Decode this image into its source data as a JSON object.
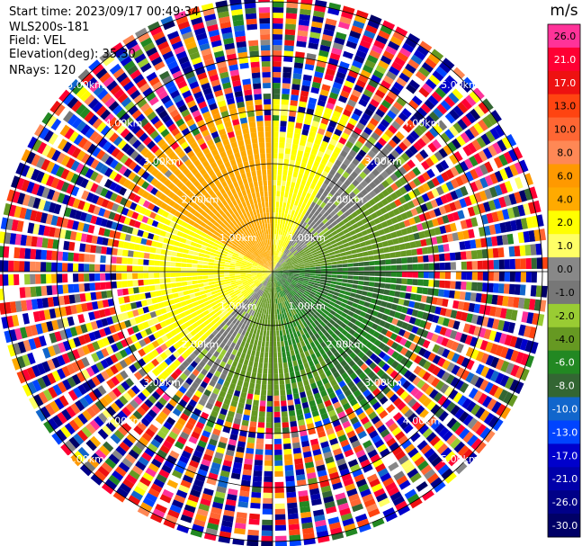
{
  "header": {
    "start_time": "Start time: 2023/09/17 00:49:34",
    "instrument": "WLS200s-181",
    "field": "Field: VEL",
    "elevation": "Elevation(deg): 35.30",
    "nrays": "NRays: 120"
  },
  "chart_data": {
    "type": "heatmap",
    "projection": "polar PPI",
    "field": "VEL",
    "units": "m/s",
    "nrays": 120,
    "range_rings_km": [
      1.0,
      2.0,
      3.0,
      4.0,
      5.0
    ],
    "range_ring_labels": [
      "1.00km",
      "2.00km",
      "3.00km",
      "4.00km",
      "5.00km"
    ],
    "max_range_km": 5.1,
    "colorbar": {
      "unit_label": "m/s",
      "ticks": [
        "26.0",
        "21.0",
        "17.0",
        "13.0",
        "10.0",
        "8.0",
        "6.0",
        "4.0",
        "2.0",
        "1.0",
        "0.0",
        "-1.0",
        "-2.0",
        "-4.0",
        "-6.0",
        "-8.0",
        "-10.0",
        "-13.0",
        "-17.0",
        "-21.0",
        "-26.0",
        "-30.0"
      ],
      "colors": [
        "#ff3399",
        "#ff0033",
        "#ee1111",
        "#ff4411",
        "#ff6633",
        "#ff8855",
        "#ff9900",
        "#ffaa00",
        "#ffff00",
        "#ffff66",
        "#888888",
        "#777777",
        "#99cc33",
        "#669922",
        "#228822",
        "#336633",
        "#1166cc",
        "#0044ff",
        "#0000cc",
        "#0000aa",
        "#000088",
        "#000066"
      ]
    },
    "sectors": [
      {
        "az_from": 0,
        "az_to": 30,
        "mean_vel": 2.5,
        "coherent_range_km": 3.2
      },
      {
        "az_from": 30,
        "az_to": 55,
        "mean_vel": -0.5,
        "coherent_range_km": 3.3
      },
      {
        "az_from": 55,
        "az_to": 85,
        "mean_vel": -3.0,
        "coherent_range_km": 3.2
      },
      {
        "az_from": 85,
        "az_to": 150,
        "mean_vel": -6.0,
        "coherent_range_km": 3.1
      },
      {
        "az_from": 150,
        "az_to": 175,
        "mean_vel": -4.0,
        "coherent_range_km": 3.0
      },
      {
        "az_from": 175,
        "az_to": 205,
        "mean_vel": -3.0,
        "coherent_range_km": 3.0
      },
      {
        "az_from": 205,
        "az_to": 225,
        "mean_vel": -0.5,
        "coherent_range_km": 2.9
      },
      {
        "az_from": 225,
        "az_to": 300,
        "mean_vel": 2.5,
        "coherent_range_km": 3.0
      },
      {
        "az_from": 300,
        "az_to": 360,
        "mean_vel": 5.0,
        "coherent_range_km": 3.2
      }
    ]
  }
}
